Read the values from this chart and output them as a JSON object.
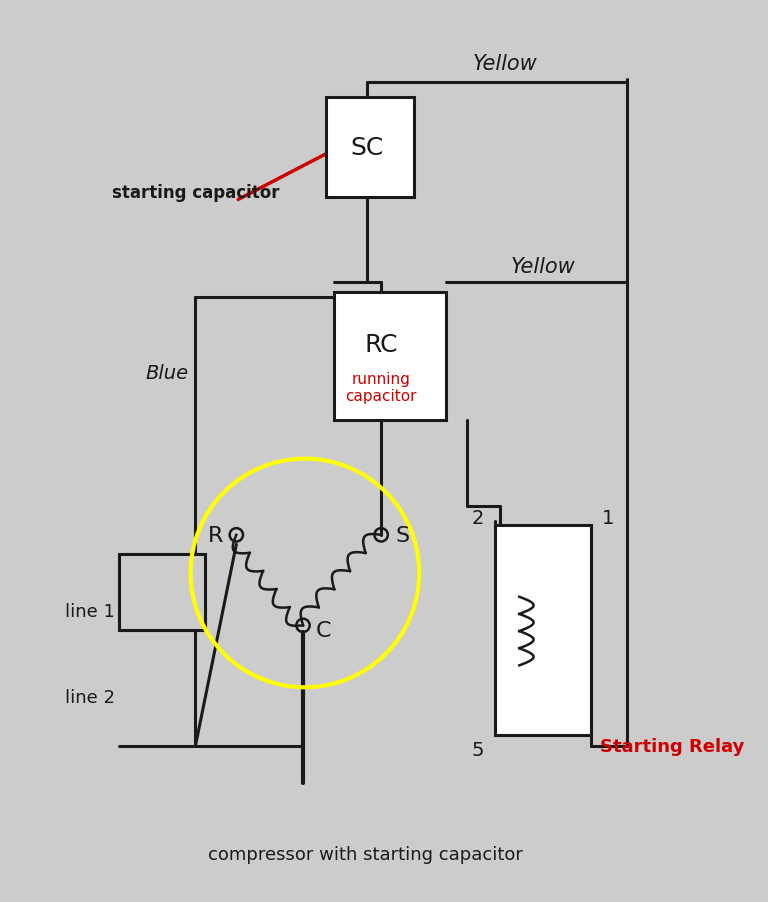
{
  "bg_color": "#cccccc",
  "line_color": "#1a1a1a",
  "red_color": "#cc0000",
  "yellow_circle_color": "#ffff00",
  "title": "compressor with starting capacitor",
  "yellow_label1": "Yellow",
  "yellow_label2": "Yellow",
  "blue_label": "Blue",
  "sc_label": "SC",
  "rc_label": "RC",
  "rc_sub": "running\ncapacitor",
  "start_cap_label": "starting capacitor",
  "r_label": "R",
  "s_label": "S",
  "c_label": "C",
  "line1_label": "line 1",
  "line2_label": "line 2",
  "relay_label": "Starting Relay",
  "num1": "1",
  "num2": "2",
  "num5": "5"
}
